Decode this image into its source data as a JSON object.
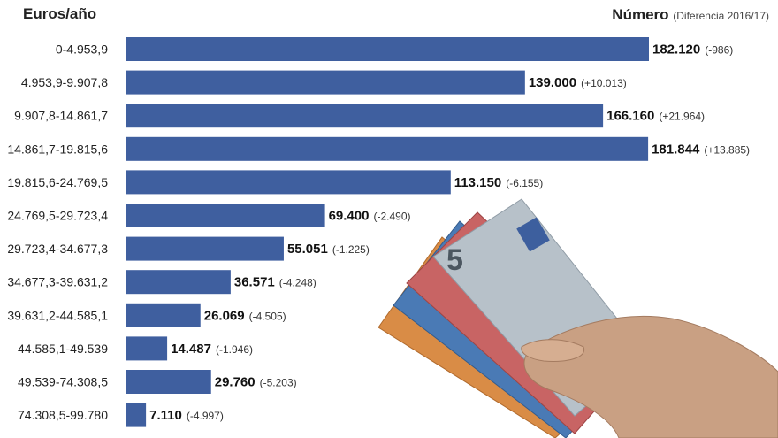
{
  "header": {
    "left_label": "Euros/año",
    "right_label": "Número",
    "right_sub": "(Diferencia 2016/17)"
  },
  "colors": {
    "bar": "#3f5f9f",
    "euro_green": "#7fa37a",
    "euro_orange": "#d98c46",
    "euro_blue": "#4a7ab5",
    "euro_red": "#c86464",
    "euro_grey": "#b7c1c9",
    "skin": "#c9a083"
  },
  "icons": [
    "euro-banknotes-hand-illustration"
  ],
  "chart_data": {
    "type": "bar",
    "orientation": "horizontal",
    "categories": [
      "0-4.953,9",
      "4.953,9-9.907,8",
      "9.907,8-14.861,7",
      "14.861,7-19.815,6",
      "19.815,6-24.769,5",
      "24.769,5-29.723,4",
      "29.723,4-34.677,3",
      "34.677,3-39.631,2",
      "39.631,2-44.585,1",
      "44.585,1-49.539",
      "49.539-74.308,5",
      "74.308,5-99.780"
    ],
    "values": [
      182120,
      139000,
      166160,
      181844,
      113150,
      69400,
      55051,
      36571,
      26069,
      14487,
      29760,
      7110
    ],
    "value_labels": [
      "182.120",
      "139.000",
      "166.160",
      "181.844",
      "113.150",
      "69.400",
      "55.051",
      "36.571",
      "26.069",
      "14.487",
      "29.760",
      "7.110"
    ],
    "diff_labels": [
      "(-986)",
      "(+10.013)",
      "(+21.964)",
      "(+13.885)",
      "(-6.155)",
      "(-2.490)",
      "(-1.225)",
      "(-4.248)",
      "(-4.505)",
      "(-1.946)",
      "(-5.203)",
      "(-4.997)"
    ],
    "xlim": [
      0,
      182120
    ],
    "grid": false,
    "legend": "none"
  }
}
